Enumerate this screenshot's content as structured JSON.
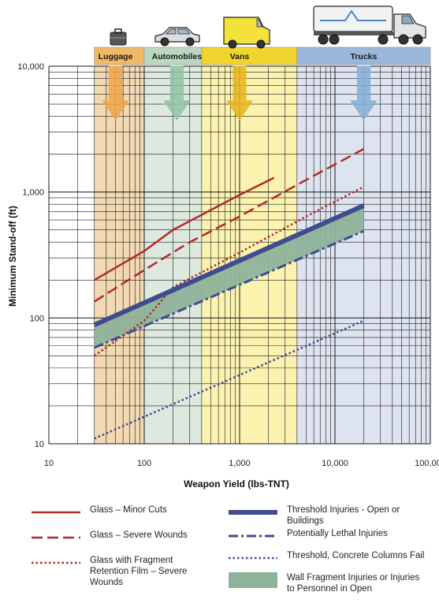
{
  "chart_data": {
    "type": "line",
    "title": "",
    "xlabel": "Weapon Yield (lbs-TNT)",
    "ylabel": "Minimum Stand-off (ft)",
    "x_scale": "log",
    "y_scale": "log",
    "xlim": [
      10,
      100000
    ],
    "ylim": [
      10,
      10000
    ],
    "x_ticks": [
      {
        "value": 10,
        "label": "10"
      },
      {
        "value": 100,
        "label": "100"
      },
      {
        "value": 1000,
        "label": "1,000"
      },
      {
        "value": 10000,
        "label": "10,000"
      },
      {
        "value": 100000,
        "label": "100,000"
      }
    ],
    "y_ticks": [
      {
        "value": 10,
        "label": "10"
      },
      {
        "value": 100,
        "label": "100"
      },
      {
        "value": 1000,
        "label": "1,000"
      },
      {
        "value": 10000,
        "label": "10,000"
      }
    ],
    "grid": true,
    "legend_position": "bottom",
    "categories": [
      {
        "name": "Luggage",
        "x_range": [
          30,
          100
        ],
        "color": "#f2d9b3",
        "header_color": "#f0b967",
        "arrow_color": "#f0a548",
        "arrow_x": 50
      },
      {
        "name": "Automobiles",
        "x_range": [
          100,
          400
        ],
        "color": "#dde8df",
        "header_color": "#bcd7c0",
        "arrow_color": "#8fc3a6",
        "arrow_x": 220
      },
      {
        "name": "Vans",
        "x_range": [
          400,
          4000
        ],
        "color": "#fbf2b0",
        "header_color": "#f2d52c",
        "arrow_color": "#e7b61c",
        "arrow_x": 1000
      },
      {
        "name": "Trucks",
        "x_range": [
          4000,
          100000
        ],
        "color": "#dde3ef",
        "header_color": "#9ab7da",
        "arrow_color": "#84aed6",
        "arrow_x": 20000
      }
    ],
    "series": [
      {
        "name": "Glass – Minor Cuts",
        "style": "solid",
        "color": "#b22a2a",
        "x": [
          30,
          100,
          200,
          1000,
          2300
        ],
        "y": [
          200,
          340,
          500,
          950,
          1300
        ]
      },
      {
        "name": "Glass – Severe Wounds",
        "style": "dashed",
        "color": "#b22a2a",
        "x": [
          30,
          100,
          300,
          1000,
          5000,
          20000
        ],
        "y": [
          135,
          240,
          400,
          640,
          1250,
          2200
        ]
      },
      {
        "name": "Glass with Fragment Retention Film – Severe Wounds",
        "style": "dotted",
        "color": "#b22a2a",
        "x": [
          30,
          100,
          200,
          1000,
          5000,
          20000
        ],
        "y": [
          50,
          95,
          175,
          330,
          640,
          1100
        ]
      },
      {
        "name": "Threshold Injuries - Open or Buildings",
        "style": "thick",
        "color": "#3f4c8f",
        "x": [
          30,
          20000
        ],
        "y": [
          88,
          780
        ]
      },
      {
        "name": "Potentially Lethal Injuries",
        "style": "dashdot",
        "color": "#3f4c8f",
        "x": [
          30,
          20000
        ],
        "y": [
          58,
          490
        ]
      },
      {
        "name": "Threshold, Concrete Columns Fail",
        "style": "dotted",
        "color": "#3f4c8f",
        "x": [
          30,
          20000
        ],
        "y": [
          11,
          95
        ]
      }
    ],
    "band": {
      "name": "Wall Fragment Injuries or Injuries to Personnel in Open",
      "color": "#8fb39a",
      "x": [
        30,
        20000
      ],
      "lower": [
        58,
        490
      ],
      "upper": [
        88,
        780
      ]
    }
  },
  "legend": {
    "left": [
      {
        "label": "Glass – Minor Cuts",
        "style": "solid"
      },
      {
        "label": "Glass – Severe Wounds",
        "style": "dashed"
      },
      {
        "label": "Glass with Fragment Retention Film – Severe Wounds",
        "style": "dotted"
      }
    ],
    "right": [
      {
        "label": "Threshold Injuries - Open or Buildings",
        "style": "thick"
      },
      {
        "label": "Potentially Lethal Injuries",
        "style": "dashdot"
      },
      {
        "label": "Threshold, Concrete Columns Fail",
        "style": "dotted"
      },
      {
        "label": "Wall Fragment Injuries or Injuries to Personnel in Open",
        "style": "band"
      }
    ]
  }
}
